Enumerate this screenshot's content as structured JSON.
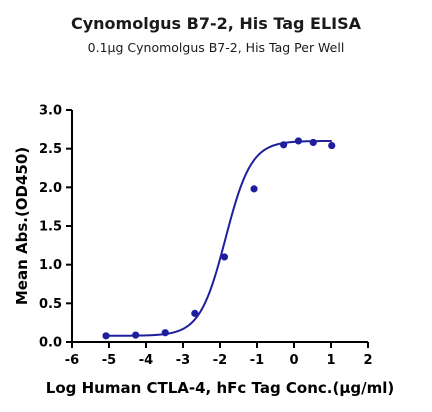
{
  "chart_data": {
    "type": "scatter",
    "title": "Cynomolgus B7-2, His Tag ELISA",
    "subtitle": "0.1μg Cynomolgus B7-2, His Tag Per Well",
    "xlabel": "Log Human CTLA-4, hFc Tag Conc.(μg/ml)",
    "ylabel": "Mean Abs.(OD450)",
    "xlim": [
      -6,
      2
    ],
    "ylim": [
      0.0,
      3.0
    ],
    "x_ticks": [
      "-6",
      "-5",
      "-4",
      "-3",
      "-2",
      "-1",
      "0",
      "1",
      "2"
    ],
    "y_ticks": [
      "0.0",
      "0.5",
      "1.0",
      "1.5",
      "2.0",
      "2.5",
      "3.0"
    ],
    "grid": false,
    "series": [
      {
        "color": "#1f1f9e",
        "x": [
          -5.08,
          -4.28,
          -3.48,
          -2.68,
          -1.88,
          -1.08,
          -0.28,
          0.12,
          0.52,
          1.02
        ],
        "y": [
          0.08,
          0.09,
          0.12,
          0.37,
          1.1,
          1.98,
          2.55,
          2.6,
          2.58,
          2.54
        ],
        "fit": {
          "model": "4PL",
          "bottom": 0.08,
          "top": 2.6,
          "logEC50": -1.85,
          "hill": 1.25,
          "x_range": [
            -5.08,
            1.02
          ]
        }
      }
    ]
  }
}
